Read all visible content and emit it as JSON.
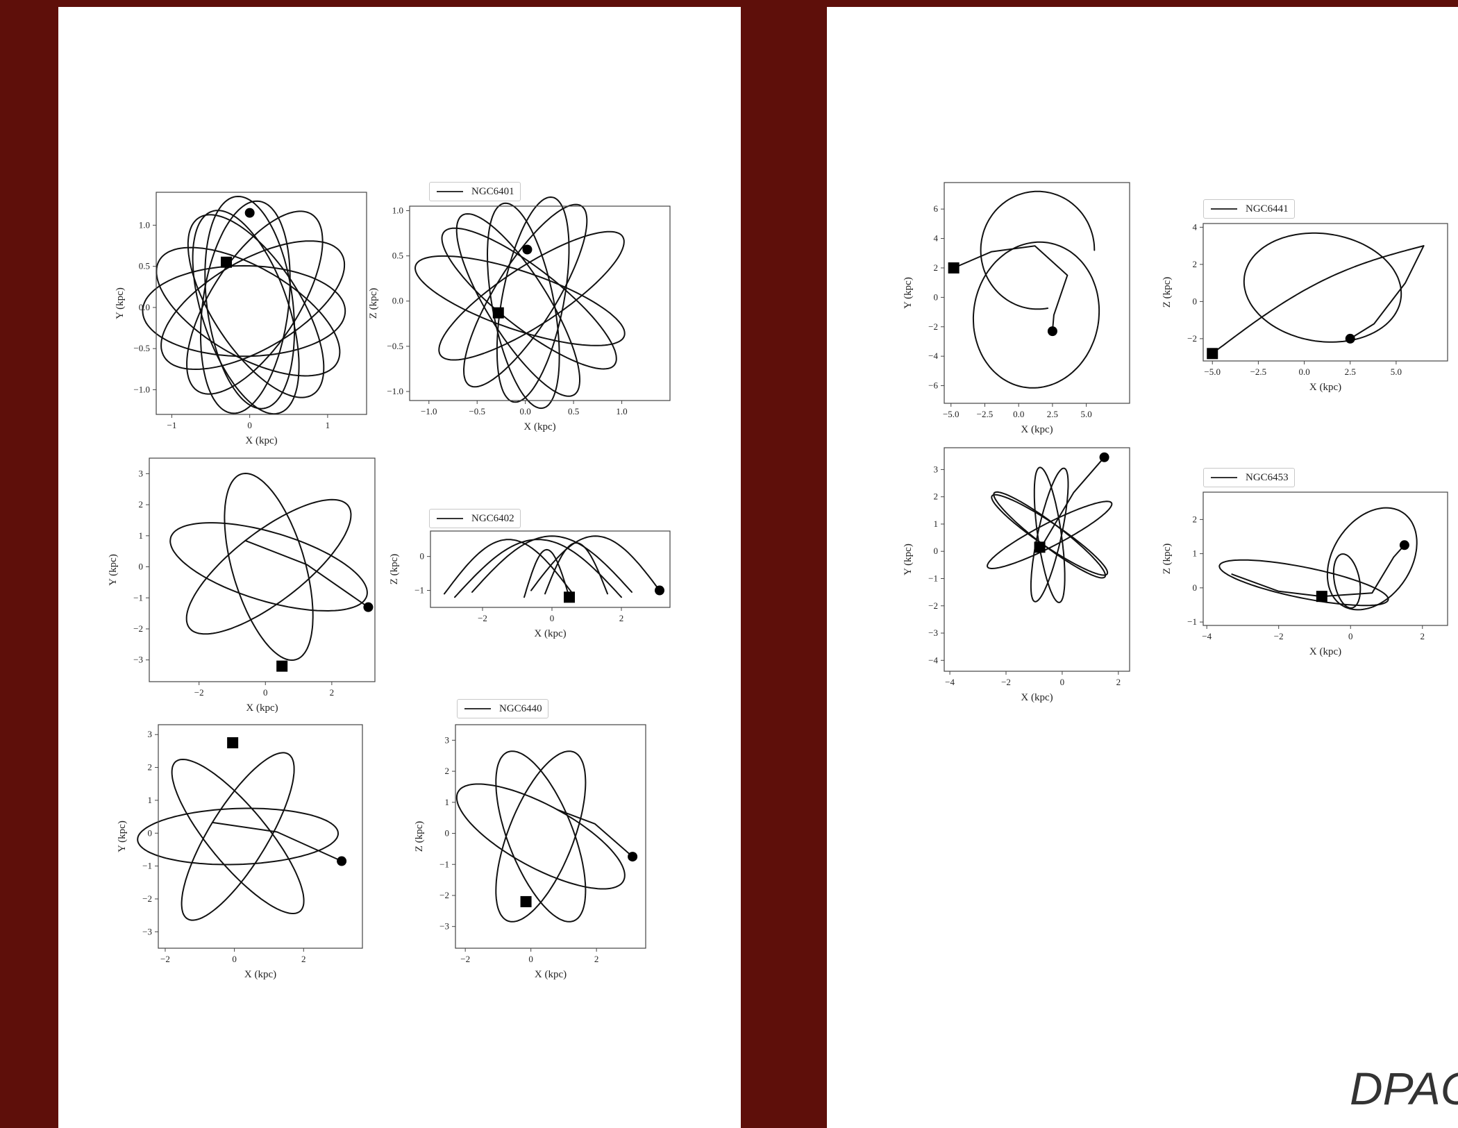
{
  "footer": {
    "text": "DPAC"
  },
  "colors": {
    "background": "#5e0f0a",
    "panel": "#ffffff",
    "line": "#111111"
  },
  "chart_data": [
    {
      "type": "line",
      "id": "l1",
      "ylabel": "Y (kpc)",
      "xlabel": "X (kpc)",
      "xlim": [
        -1.2,
        1.5
      ],
      "ylim": [
        -1.3,
        1.4
      ],
      "xticks": [
        -1,
        0,
        1
      ],
      "xtick_labels": [
        "−1",
        "0",
        "1"
      ],
      "yticks": [
        -1,
        -0.5,
        0,
        0.5,
        1
      ],
      "ytick_labels": [
        "−1.0",
        "−0.5",
        "0.0",
        "0.5",
        "1.0"
      ],
      "orbit": {
        "kind": "rosette",
        "a": 0.55,
        "b": 1.3,
        "rot_deg": [
          8,
          35,
          62,
          90,
          118,
          145,
          172,
          200
        ],
        "sq": [
          0.1,
          -0.02
        ]
      },
      "start_marker": {
        "shape": "circle",
        "x": 0.0,
        "y": 1.15
      },
      "end_marker": {
        "shape": "square",
        "x": -0.3,
        "y": 0.55
      }
    },
    {
      "type": "line",
      "id": "l2",
      "legend": "NGC6401",
      "ylabel": "Z (kpc)",
      "xlabel": "X (kpc)",
      "xlim": [
        -1.2,
        1.5
      ],
      "ylim": [
        -1.1,
        1.05
      ],
      "xticks": [
        -1,
        -0.5,
        0,
        0.5,
        1
      ],
      "xtick_labels": [
        "−1.0",
        "−0.5",
        "0.0",
        "0.5",
        "1.0"
      ],
      "yticks": [
        -1,
        -0.5,
        0,
        0.5,
        1
      ],
      "ytick_labels": [
        "−1.0",
        "−0.5",
        "0.0",
        "0.5",
        "1.0"
      ],
      "orbit": {
        "kind": "rosette",
        "a": 0.32,
        "b": 1.15,
        "rot_deg": [
          -30,
          -10,
          10,
          30,
          50,
          -55,
          70
        ],
        "sq": [
          0.25,
          -0.1
        ]
      },
      "start_marker": {
        "shape": "circle",
        "x": 0.02,
        "y": 0.57
      },
      "end_marker": {
        "shape": "square",
        "x": -0.28,
        "y": -0.13
      }
    },
    {
      "type": "line",
      "id": "l3",
      "ylabel": "Y (kpc)",
      "xlabel": "X (kpc)",
      "xlim": [
        -3.5,
        3.3
      ],
      "ylim": [
        -3.7,
        3.5
      ],
      "xticks": [
        -2,
        0,
        2
      ],
      "xtick_labels": [
        "−2",
        "0",
        "2"
      ],
      "yticks": [
        -3,
        -2,
        -1,
        0,
        1,
        2,
        3
      ],
      "ytick_labels": [
        "−3",
        "−2",
        "−1",
        "0",
        "1",
        "2",
        "3"
      ],
      "orbit": {
        "kind": "loops",
        "a": 1.1,
        "b": 3.1,
        "rot_deg": [
          15,
          72,
          130
        ],
        "cx": 0.1,
        "cy": 0.0
      },
      "start_marker": {
        "shape": "circle",
        "x": 3.1,
        "y": -1.3
      },
      "end_marker": {
        "shape": "square",
        "x": 0.5,
        "y": -3.2
      }
    },
    {
      "type": "line",
      "id": "l4",
      "legend": "NGC6402",
      "ylabel": "Z (kpc)",
      "xlabel": "X (kpc)",
      "xlim": [
        -3.5,
        3.4
      ],
      "ylim": [
        -1.5,
        0.75
      ],
      "xticks": [
        -2,
        0,
        2
      ],
      "xtick_labels": [
        "−2",
        "0",
        "2"
      ],
      "yticks": [
        -1,
        0
      ],
      "ytick_labels": [
        "−1",
        "0"
      ],
      "orbit": {
        "kind": "arches"
      },
      "start_marker": {
        "shape": "circle",
        "x": 3.1,
        "y": -1.0
      },
      "end_marker": {
        "shape": "square",
        "x": 0.5,
        "y": -1.2
      }
    },
    {
      "type": "line",
      "id": "l5",
      "ylabel": "Y (kpc)",
      "xlabel": "X (kpc)",
      "xlim": [
        -2.2,
        3.7
      ],
      "ylim": [
        -3.5,
        3.3
      ],
      "xticks": [
        -2,
        0,
        2
      ],
      "xtick_labels": [
        "−2",
        "0",
        "2"
      ],
      "yticks": [
        -3,
        -2,
        -1,
        0,
        1,
        2,
        3
      ],
      "ytick_labels": [
        "−3",
        "−2",
        "−1",
        "0",
        "1",
        "2",
        "3"
      ],
      "orbit": {
        "kind": "loops",
        "a": 0.85,
        "b": 2.9,
        "rot_deg": [
          38,
          92,
          150
        ],
        "cx": 0.1,
        "cy": -0.1
      },
      "start_marker": {
        "shape": "circle",
        "x": 3.1,
        "y": -0.85
      },
      "end_marker": {
        "shape": "square",
        "x": -0.05,
        "y": 2.75
      }
    },
    {
      "type": "line",
      "id": "l6",
      "legend": "NGC6440",
      "ylabel": "Z (kpc)",
      "xlabel": "X (kpc)",
      "xlim": [
        -2.3,
        3.5
      ],
      "ylim": [
        -3.7,
        3.5
      ],
      "xticks": [
        -2,
        0,
        2
      ],
      "xtick_labels": [
        "−2",
        "0",
        "2"
      ],
      "yticks": [
        -3,
        -2,
        -1,
        0,
        1,
        2,
        3
      ],
      "ytick_labels": [
        "−3",
        "−2",
        "−1",
        "0",
        "1",
        "2",
        "3"
      ],
      "orbit": {
        "kind": "loops",
        "a": 1.0,
        "b": 2.9,
        "rot_deg": [
          -20,
          20,
          60
        ],
        "cx": 0.3,
        "cy": -0.1
      },
      "start_marker": {
        "shape": "circle",
        "x": 3.1,
        "y": -0.75
      },
      "end_marker": {
        "shape": "square",
        "x": -0.15,
        "y": -2.2
      }
    },
    {
      "type": "line",
      "id": "r1",
      "ylabel": "Y (kpc)",
      "xlabel": "X (kpc)",
      "xlim": [
        -5.5,
        8.2
      ],
      "ylim": [
        -7.2,
        7.8
      ],
      "xticks": [
        -5,
        -2.5,
        0,
        2.5,
        5
      ],
      "xtick_labels": [
        "−5.0",
        "−2.5",
        "0.0",
        "2.5",
        "5.0"
      ],
      "yticks": [
        -6,
        -4,
        -2,
        0,
        2,
        4,
        6
      ],
      "ytick_labels": [
        "−6",
        "−4",
        "−2",
        "0",
        "2",
        "4",
        "6"
      ],
      "orbit": {
        "kind": "two-loops"
      },
      "start_marker": {
        "shape": "circle",
        "x": 2.5,
        "y": -2.3
      },
      "end_marker": {
        "shape": "square",
        "x": -4.8,
        "y": 2.0
      }
    },
    {
      "type": "line",
      "id": "r2",
      "legend": "NGC6441",
      "ylabel": "Z (kpc)",
      "xlabel": "X (kpc)",
      "xlim": [
        -5.5,
        7.8
      ],
      "ylim": [
        -3.2,
        4.2
      ],
      "xticks": [
        -5,
        -2.5,
        0,
        2.5,
        5
      ],
      "xtick_labels": [
        "−5.0",
        "−2.5",
        "0.0",
        "2.5",
        "5.0"
      ],
      "yticks": [
        -2,
        0,
        2,
        4
      ],
      "ytick_labels": [
        "−2",
        "0",
        "2",
        "4"
      ],
      "orbit": {
        "kind": "tilted"
      },
      "start_marker": {
        "shape": "circle",
        "x": 2.5,
        "y": -2.0
      },
      "end_marker": {
        "shape": "square",
        "x": -5.0,
        "y": -2.8
      }
    },
    {
      "type": "line",
      "id": "r3",
      "ylabel": "Y (kpc)",
      "xlabel": "X (kpc)",
      "xlim": [
        -4.2,
        2.4
      ],
      "ylim": [
        -4.4,
        3.8
      ],
      "xticks": [
        -4,
        -2,
        0,
        2
      ],
      "xtick_labels": [
        "−4",
        "−2",
        "0",
        "2"
      ],
      "yticks": [
        -4,
        -3,
        -2,
        -1,
        0,
        1,
        2,
        3
      ],
      "ytick_labels": [
        "−4",
        "−3",
        "−2",
        "−1",
        "0",
        "1",
        "2",
        "3"
      ],
      "orbit": {
        "kind": "petals",
        "a": 0.42,
        "b": 2.5,
        "rot_deg": [
          -12,
          52,
          118,
          188,
          235
        ],
        "cx": -0.45,
        "cy": 0.6
      },
      "start_marker": {
        "shape": "circle",
        "x": 1.5,
        "y": 3.45
      },
      "end_marker": {
        "shape": "square",
        "x": -0.8,
        "y": 0.15
      }
    },
    {
      "type": "line",
      "id": "r4",
      "legend": "NGC6453",
      "ylabel": "Z (kpc)",
      "xlabel": "X (kpc)",
      "xlim": [
        -4.1,
        2.7
      ],
      "ylim": [
        -1.1,
        2.8
      ],
      "xticks": [
        -4,
        -2,
        0,
        2
      ],
      "xtick_labels": [
        "−4",
        "−2",
        "0",
        "2"
      ],
      "yticks": [
        -1,
        0,
        1,
        2
      ],
      "ytick_labels": [
        "−1",
        "0",
        "1",
        "2"
      ],
      "orbit": {
        "kind": "z-loops"
      },
      "start_marker": {
        "shape": "circle",
        "x": 1.5,
        "y": 1.25
      },
      "end_marker": {
        "shape": "square",
        "x": -0.8,
        "y": -0.25
      }
    }
  ]
}
